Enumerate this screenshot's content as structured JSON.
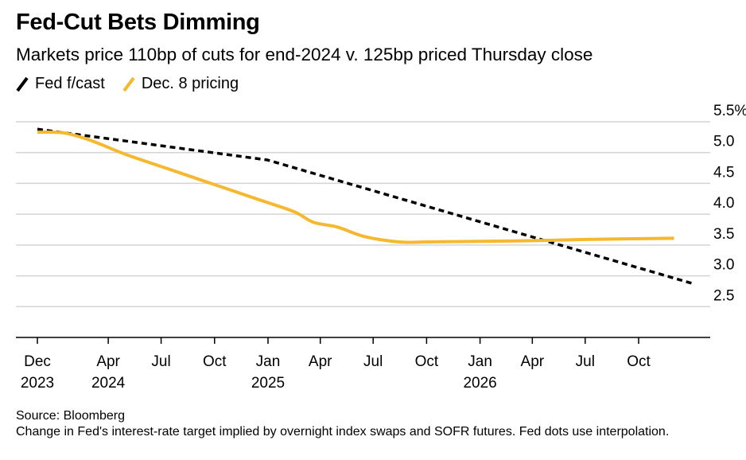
{
  "title": "Fed-Cut Bets Dimming",
  "subtitle": "Markets price 110bp of cuts for end-2024 v. 125bp priced Thursday close",
  "legend": [
    {
      "label": "Fed f/cast",
      "color": "#000000",
      "dashed": true
    },
    {
      "label": "Dec. 8 pricing",
      "color": "#F5B82E",
      "dashed": false
    }
  ],
  "source": "Source: Bloomberg",
  "note": "Change in Fed's interest-rate target implied by overnight index swaps and SOFR futures. Fed dots use interpolation.",
  "chart_data": {
    "type": "line",
    "x_axis": {
      "type": "date",
      "range": [
        "2023-12-01",
        "2026-12-01"
      ],
      "ticks": [
        {
          "date": "2023-12-01",
          "label": "Dec",
          "year": "2023"
        },
        {
          "date": "2024-04-01",
          "label": "Apr",
          "year": "2024"
        },
        {
          "date": "2024-07-01",
          "label": "Jul",
          "year": ""
        },
        {
          "date": "2024-10-01",
          "label": "Oct",
          "year": ""
        },
        {
          "date": "2025-01-01",
          "label": "Jan",
          "year": "2025"
        },
        {
          "date": "2025-04-01",
          "label": "Apr",
          "year": ""
        },
        {
          "date": "2025-07-01",
          "label": "Jul",
          "year": ""
        },
        {
          "date": "2025-10-01",
          "label": "Oct",
          "year": ""
        },
        {
          "date": "2026-01-01",
          "label": "Jan",
          "year": "2026"
        },
        {
          "date": "2026-04-01",
          "label": "Apr",
          "year": ""
        },
        {
          "date": "2026-07-01",
          "label": "Jul",
          "year": ""
        },
        {
          "date": "2026-10-01",
          "label": "Oct",
          "year": ""
        }
      ]
    },
    "y_axis": {
      "range": [
        2.0,
        5.5
      ],
      "ticks": [
        2.5,
        3.0,
        3.5,
        4.0,
        4.5,
        5.0,
        5.5
      ],
      "tick_labels": [
        "2.5",
        "3.0",
        "3.5",
        "4.0",
        "4.5",
        "5.0",
        "5.5%"
      ],
      "position": "right",
      "grid": true
    },
    "series": [
      {
        "name": "Fed f/cast",
        "style": "dashed",
        "color": "#000000",
        "points": [
          {
            "x": "2023-12-01",
            "y": 5.38
          },
          {
            "x": "2024-12-31",
            "y": 4.88
          },
          {
            "x": "2025-12-31",
            "y": 3.88
          },
          {
            "x": "2026-12-31",
            "y": 2.88
          }
        ]
      },
      {
        "name": "Dec. 8 pricing",
        "style": "solid",
        "color": "#F5B82E",
        "points": [
          {
            "x": "2023-12-01",
            "y": 5.33
          },
          {
            "x": "2024-01-15",
            "y": 5.32
          },
          {
            "x": "2024-03-01",
            "y": 5.2
          },
          {
            "x": "2024-05-01",
            "y": 4.97
          },
          {
            "x": "2024-07-15",
            "y": 4.73
          },
          {
            "x": "2024-10-01",
            "y": 4.48
          },
          {
            "x": "2024-12-15",
            "y": 4.24
          },
          {
            "x": "2025-02-15",
            "y": 4.04
          },
          {
            "x": "2025-03-20",
            "y": 3.87
          },
          {
            "x": "2025-05-01",
            "y": 3.79
          },
          {
            "x": "2025-06-15",
            "y": 3.64
          },
          {
            "x": "2025-08-15",
            "y": 3.55
          },
          {
            "x": "2025-10-01",
            "y": 3.55
          },
          {
            "x": "2026-01-01",
            "y": 3.56
          },
          {
            "x": "2026-04-01",
            "y": 3.57
          },
          {
            "x": "2026-07-01",
            "y": 3.59
          },
          {
            "x": "2026-12-01",
            "y": 3.61
          }
        ]
      }
    ]
  }
}
